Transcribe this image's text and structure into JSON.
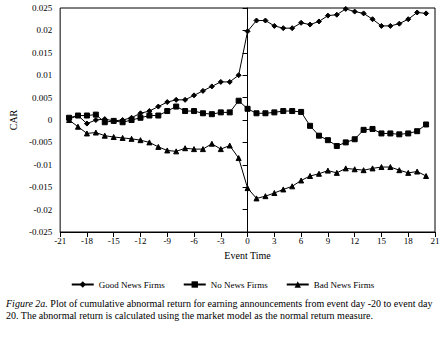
{
  "chart_data": {
    "type": "line",
    "caption": "Figure 2a. Plot of cumulative abnormal return for earning announcements from event day -20 to event day 20. The abnormal return is calculated using the market model as the normal return measure.",
    "x_label": "Event Time",
    "y_label": "CAR",
    "x": [
      -20,
      -19,
      -18,
      -17,
      -16,
      -15,
      -14,
      -13,
      -12,
      -11,
      -10,
      -9,
      -8,
      -7,
      -6,
      -5,
      -4,
      -3,
      -2,
      -1,
      0,
      1,
      2,
      3,
      4,
      5,
      6,
      7,
      8,
      9,
      10,
      11,
      12,
      13,
      14,
      15,
      16,
      17,
      18,
      19,
      20
    ],
    "series": [
      {
        "name": "Good News Firms",
        "color": "#000000",
        "marker": "diamond",
        "values": [
          0.0002,
          0.001,
          -0.0008,
          0.0,
          0.0002,
          -0.0002,
          0.0,
          0.0005,
          0.0015,
          0.002,
          0.003,
          0.004,
          0.0045,
          0.0045,
          0.0055,
          0.0065,
          0.0075,
          0.0085,
          0.0085,
          0.01,
          0.0198,
          0.0222,
          0.0222,
          0.021,
          0.0205,
          0.0205,
          0.0217,
          0.0213,
          0.022,
          0.0233,
          0.0235,
          0.0248,
          0.0242,
          0.0238,
          0.0225,
          0.021,
          0.021,
          0.0215,
          0.0225,
          0.024,
          0.0238
        ]
      },
      {
        "name": "No News Firms",
        "color": "#000000",
        "marker": "square",
        "values": [
          0.0005,
          0.001,
          0.001,
          0.0012,
          -0.0005,
          -0.0002,
          -0.0005,
          0.0,
          0.0005,
          0.001,
          0.001,
          0.002,
          0.003,
          0.002,
          0.002,
          0.0015,
          0.0013,
          0.0017,
          0.0017,
          0.0043,
          0.0025,
          0.0015,
          0.0015,
          0.0017,
          0.002,
          0.002,
          0.0018,
          -0.0013,
          -0.0035,
          -0.0045,
          -0.0058,
          -0.005,
          -0.0043,
          -0.0022,
          -0.002,
          -0.003,
          -0.003,
          -0.0032,
          -0.003,
          -0.0025,
          -0.001
        ]
      },
      {
        "name": "Bad News Firms",
        "color": "#000000",
        "marker": "triangle",
        "values": [
          0.0,
          -0.0015,
          -0.003,
          -0.0028,
          -0.0035,
          -0.0038,
          -0.004,
          -0.0042,
          -0.0045,
          -0.005,
          -0.006,
          -0.0068,
          -0.007,
          -0.0063,
          -0.0065,
          -0.0065,
          -0.0053,
          -0.0065,
          -0.0057,
          -0.0085,
          -0.0152,
          -0.0175,
          -0.017,
          -0.0163,
          -0.0155,
          -0.0148,
          -0.0135,
          -0.0125,
          -0.012,
          -0.0113,
          -0.0118,
          -0.0108,
          -0.011,
          -0.0112,
          -0.0108,
          -0.0105,
          -0.0105,
          -0.0112,
          -0.0118,
          -0.0115,
          -0.0125
        ]
      }
    ],
    "xlim": [
      -21,
      21
    ],
    "xticks": [
      -21,
      -18,
      -15,
      -12,
      -9,
      -6,
      -3,
      0,
      3,
      6,
      9,
      12,
      15,
      18,
      21
    ],
    "ylim": [
      -0.025,
      0.025
    ],
    "yticks": [
      -0.025,
      -0.02,
      -0.015,
      -0.01,
      -0.005,
      0,
      0.005,
      0.01,
      0.015,
      0.02,
      0.025
    ],
    "grid": false,
    "legend": "bottom"
  }
}
